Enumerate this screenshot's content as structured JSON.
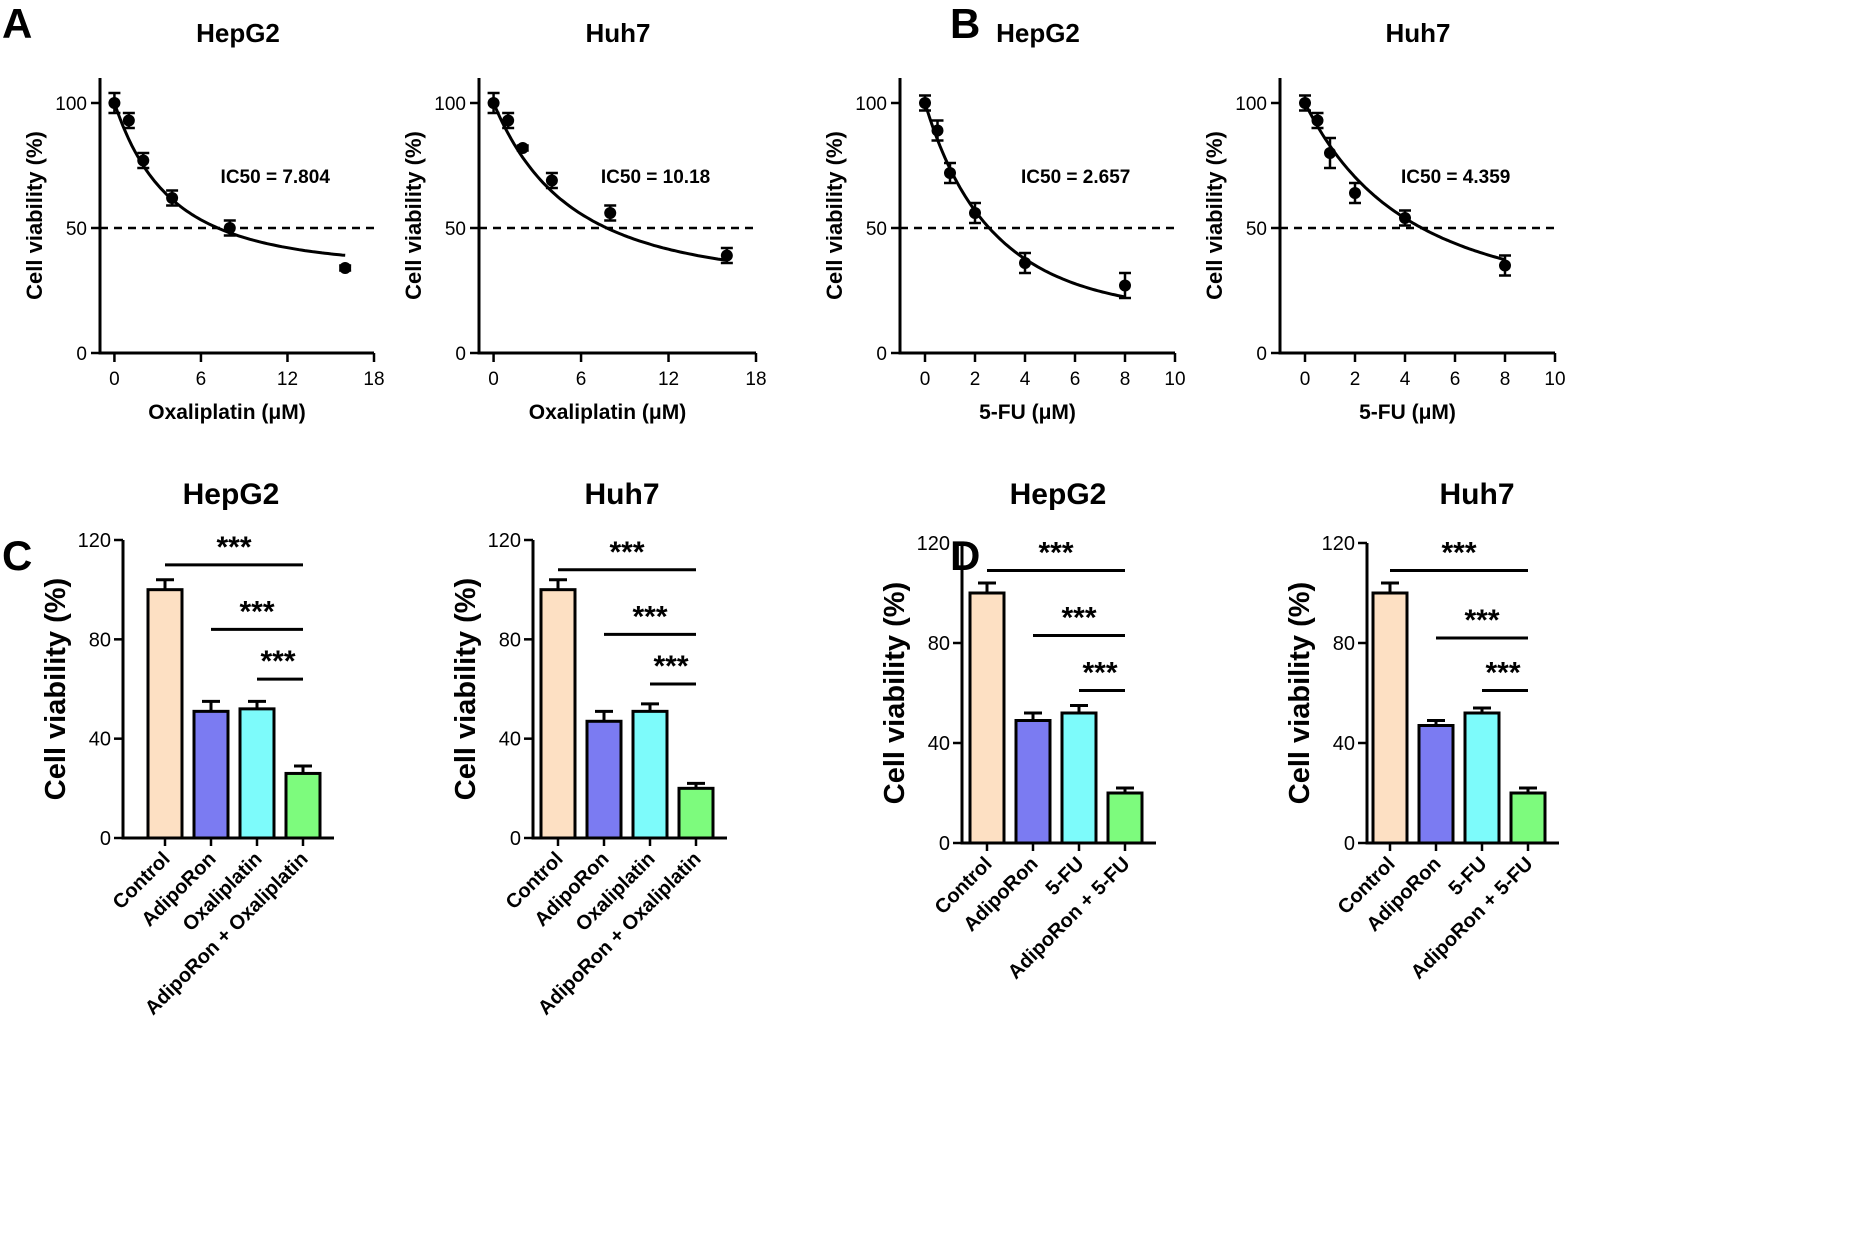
{
  "panels": [
    {
      "label": "A"
    },
    {
      "label": "B"
    },
    {
      "label": "C"
    },
    {
      "label": "D"
    }
  ],
  "chart_data": [
    {
      "type": "line",
      "panel": "A",
      "title": "HepG2",
      "xlabel": "Oxaliplatin (μM)",
      "ylabel": "Cell viability (%)",
      "xlim": [
        -1,
        18
      ],
      "ylim": [
        0,
        110
      ],
      "xticks": [
        0,
        6,
        12,
        18
      ],
      "yticks": [
        0,
        50,
        100
      ],
      "x": [
        0,
        1,
        2,
        4,
        8,
        16
      ],
      "y": [
        100,
        93,
        77,
        62,
        50,
        34
      ],
      "err": [
        4,
        3,
        3,
        3,
        3,
        1
      ],
      "fit": {
        "a": 35.6,
        "b": 0.64,
        "k": 0.155
      },
      "threshold": 50,
      "annotation": "IC50 = 7.804"
    },
    {
      "type": "line",
      "panel": "A",
      "title": "Huh7",
      "xlabel": "Oxaliplatin (μM)",
      "ylabel": "Cell viability (%)",
      "xlim": [
        -1,
        18
      ],
      "ylim": [
        0,
        110
      ],
      "xticks": [
        0,
        6,
        12,
        18
      ],
      "yticks": [
        0,
        50,
        100
      ],
      "x": [
        0,
        1,
        2,
        4,
        8,
        16
      ],
      "y": [
        100,
        93,
        82,
        69,
        56,
        39
      ],
      "err": [
        4,
        3,
        1,
        3,
        3,
        3
      ],
      "fit": {
        "a": 30.4,
        "b": 0.7,
        "k": 0.125
      },
      "threshold": 50,
      "annotation": "IC50 = 10.18"
    },
    {
      "type": "line",
      "panel": "B",
      "title": "HepG2",
      "xlabel": "5-FU (μM)",
      "ylabel": "Cell viability (%)",
      "xlim": [
        -1,
        10
      ],
      "ylim": [
        0,
        110
      ],
      "xticks": [
        0,
        2,
        4,
        6,
        8,
        10
      ],
      "yticks": [
        0,
        50,
        100
      ],
      "x": [
        0,
        0.5,
        1,
        2,
        4,
        8
      ],
      "y": [
        100,
        89,
        72,
        56,
        36,
        27
      ],
      "err": [
        3,
        4,
        4,
        4,
        4,
        5
      ],
      "fit": {
        "a": 16.0,
        "b": 0.84,
        "k": 0.3
      },
      "threshold": 50,
      "annotation": "IC50 = 2.657"
    },
    {
      "type": "line",
      "panel": "B",
      "title": "Huh7",
      "xlabel": "5-FU (μM)",
      "ylabel": "Cell viability (%)",
      "xlim": [
        -1,
        10
      ],
      "ylim": [
        0,
        110
      ],
      "xticks": [
        0,
        2,
        4,
        6,
        8,
        10
      ],
      "yticks": [
        0,
        50,
        100
      ],
      "x": [
        0,
        0.5,
        1,
        2,
        4,
        8
      ],
      "y": [
        100,
        93,
        80,
        64,
        54,
        35
      ],
      "err": [
        3,
        3,
        6,
        4,
        3,
        4
      ],
      "fit": {
        "a": 23.0,
        "b": 0.77,
        "k": 0.18
      },
      "threshold": 50,
      "annotation": "IC50 = 4.359"
    },
    {
      "type": "bar",
      "panel": "C",
      "title": "HepG2",
      "ylabel": "Cell viability (%)",
      "categories": [
        "Control",
        "AdipoRon",
        "Oxaliplatin",
        "AdipoRon + Oxaliplatin"
      ],
      "values": [
        100,
        51,
        52,
        26
      ],
      "err": [
        4,
        4,
        3,
        3
      ],
      "colors": [
        "#fde0c3",
        "#7b7bf2",
        "#7dfbfb",
        "#7dfb7d"
      ],
      "ylim": [
        0,
        120
      ],
      "yticks": [
        0,
        40,
        80,
        120
      ],
      "significance": [
        {
          "from": 0,
          "to": 3,
          "y": 110,
          "label": "***"
        },
        {
          "from": 1,
          "to": 3,
          "y": 84,
          "label": "***"
        },
        {
          "from": 2,
          "to": 3,
          "y": 64,
          "label": "***"
        }
      ]
    },
    {
      "type": "bar",
      "panel": "C",
      "title": "Huh7",
      "ylabel": "Cell viability (%)",
      "categories": [
        "Control",
        "AdipoRon",
        "Oxaliplatin",
        "AdipoRon + Oxaliplatin"
      ],
      "values": [
        100,
        47,
        51,
        20
      ],
      "err": [
        4,
        4,
        3,
        2
      ],
      "colors": [
        "#fde0c3",
        "#7b7bf2",
        "#7dfbfb",
        "#7dfb7d"
      ],
      "ylim": [
        0,
        120
      ],
      "yticks": [
        0,
        40,
        80,
        120
      ],
      "significance": [
        {
          "from": 0,
          "to": 3,
          "y": 108,
          "label": "***"
        },
        {
          "from": 1,
          "to": 3,
          "y": 82,
          "label": "***"
        },
        {
          "from": 2,
          "to": 3,
          "y": 62,
          "label": "***"
        }
      ]
    },
    {
      "type": "bar",
      "panel": "D",
      "title": "HepG2",
      "ylabel": "Cell viability (%)",
      "categories": [
        "Control",
        "AdipoRon",
        "5-FU",
        "AdipoRon + 5-FU"
      ],
      "values": [
        100,
        49,
        52,
        20
      ],
      "err": [
        4,
        3,
        3,
        2
      ],
      "colors": [
        "#fde0c3",
        "#7b7bf2",
        "#7dfbfb",
        "#7dfb7d"
      ],
      "ylim": [
        0,
        120
      ],
      "yticks": [
        0,
        40,
        80,
        120
      ],
      "significance": [
        {
          "from": 0,
          "to": 3,
          "y": 109,
          "label": "***"
        },
        {
          "from": 1,
          "to": 3,
          "y": 83,
          "label": "***"
        },
        {
          "from": 2,
          "to": 3,
          "y": 61,
          "label": "***"
        }
      ]
    },
    {
      "type": "bar",
      "panel": "D",
      "title": "Huh7",
      "ylabel": "Cell viability (%)",
      "categories": [
        "Control",
        "AdipoRon",
        "5-FU",
        "AdipoRon + 5-FU"
      ],
      "values": [
        100,
        47,
        52,
        20
      ],
      "err": [
        4,
        2,
        2,
        2
      ],
      "colors": [
        "#fde0c3",
        "#7b7bf2",
        "#7dfbfb",
        "#7dfb7d"
      ],
      "ylim": [
        0,
        120
      ],
      "yticks": [
        0,
        40,
        80,
        120
      ],
      "significance": [
        {
          "from": 0,
          "to": 3,
          "y": 109,
          "label": "***"
        },
        {
          "from": 1,
          "to": 3,
          "y": 82,
          "label": "***"
        },
        {
          "from": 2,
          "to": 3,
          "y": 61,
          "label": "***"
        }
      ]
    }
  ]
}
